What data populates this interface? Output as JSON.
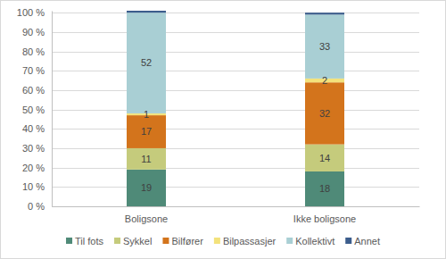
{
  "chart_data": {
    "type": "bar",
    "stacked": true,
    "data_labels": true,
    "grid": true,
    "legend": "bottom",
    "categories": [
      "Boligsone",
      "Ikke boligsone"
    ],
    "ylim": [
      0,
      101
    ],
    "yticks": [
      {
        "value": 0,
        "label": "0 %"
      },
      {
        "value": 10,
        "label": "10 %"
      },
      {
        "value": 20,
        "label": "20 %"
      },
      {
        "value": 30,
        "label": "30 %"
      },
      {
        "value": 40,
        "label": "40 %"
      },
      {
        "value": 50,
        "label": "50 %"
      },
      {
        "value": 60,
        "label": "60 %"
      },
      {
        "value": 70,
        "label": "70 %"
      },
      {
        "value": 80,
        "label": "80 %"
      },
      {
        "value": 90,
        "label": "90 %"
      },
      {
        "value": 100,
        "label": "100 %"
      }
    ],
    "series": [
      {
        "name": "Til fots",
        "color": "#4f8a78",
        "values": [
          19,
          18
        ]
      },
      {
        "name": "Sykkel",
        "color": "#c5cb7c",
        "values": [
          11,
          14
        ]
      },
      {
        "name": "Bilfører",
        "color": "#d3741c",
        "values": [
          17,
          32
        ]
      },
      {
        "name": "Bilpassasjer",
        "color": "#f3e27c",
        "values": [
          1,
          2
        ]
      },
      {
        "name": "Kollektivt",
        "color": "#a9cfd4",
        "values": [
          52,
          33
        ]
      },
      {
        "name": "Annet",
        "color": "#3c5d8c",
        "values": [
          1,
          1
        ],
        "value_labels": [
          null,
          null
        ]
      }
    ]
  }
}
